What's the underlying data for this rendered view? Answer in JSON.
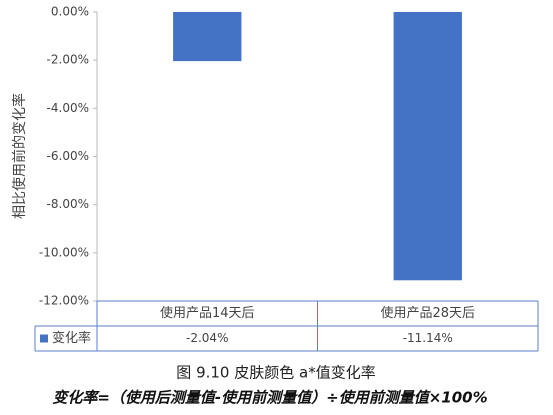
{
  "chart_data": {
    "type": "bar",
    "ylabel": "相比使用前的变化率",
    "categories": [
      "使用产品14天后",
      "使用产品28天后"
    ],
    "series": [
      {
        "name": "变化率",
        "color": "#4472c4",
        "values": [
          -2.04,
          -11.14
        ],
        "value_labels": [
          "-2.04%",
          "-11.14%"
        ]
      }
    ],
    "ylim": [
      -12,
      0
    ],
    "yticks": [
      {
        "value": 0,
        "label": "0.00%"
      },
      {
        "value": -2,
        "label": "-2.00%"
      },
      {
        "value": -4,
        "label": "-4.00%"
      },
      {
        "value": -6,
        "label": "-6.00%"
      },
      {
        "value": -8,
        "label": "-8.00%"
      },
      {
        "value": -10,
        "label": "-10.00%"
      },
      {
        "value": -12,
        "label": "-12.00%"
      }
    ],
    "grid": false,
    "caption": "图 9.10 皮肤颜色 a*值变化率",
    "formula": "变化率=（使用后测量值-使用前测量值）÷使用前测量值×100%"
  }
}
